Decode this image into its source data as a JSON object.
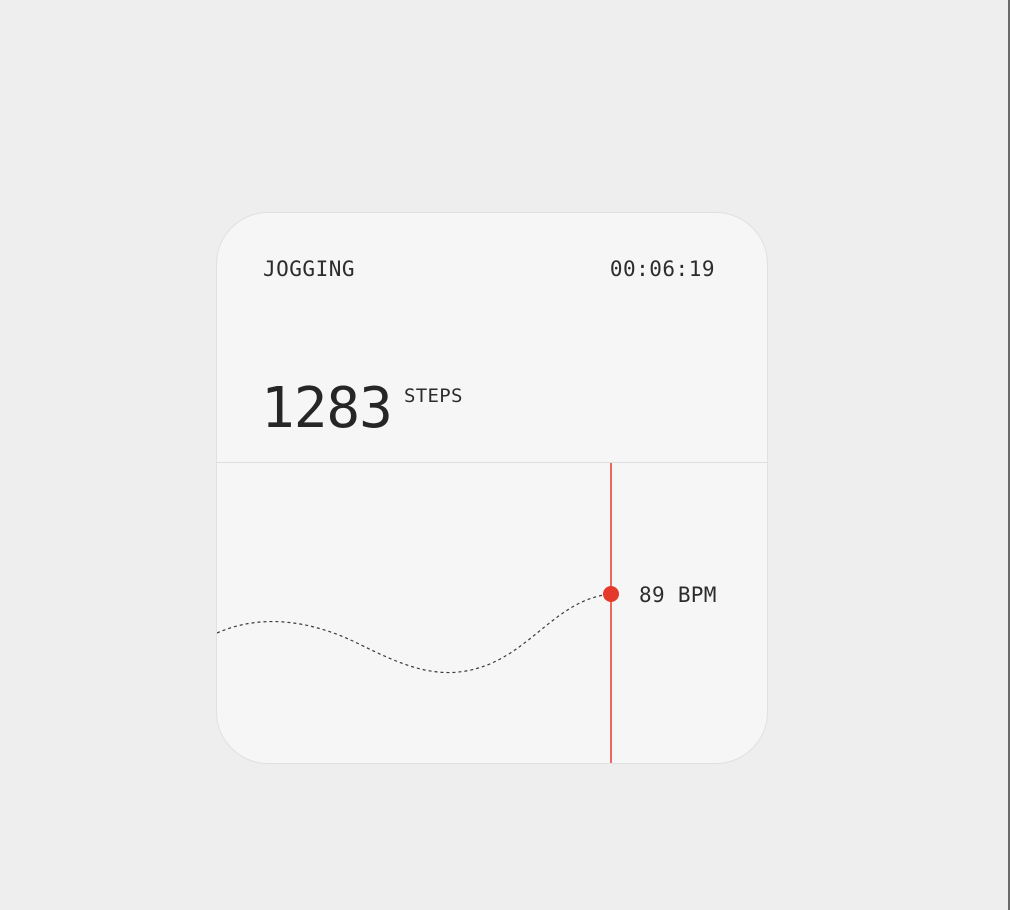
{
  "workout": {
    "activity": "JOGGING",
    "elapsed": "00:06:19",
    "steps": {
      "value": "1283",
      "unit": "STEPS"
    },
    "heart_rate": {
      "current": "89 BPM"
    }
  },
  "colors": {
    "accent": "#e53a2b",
    "card_background": "#f6f6f6",
    "page_background": "#eeeeee",
    "text": "#2a2a2a"
  }
}
